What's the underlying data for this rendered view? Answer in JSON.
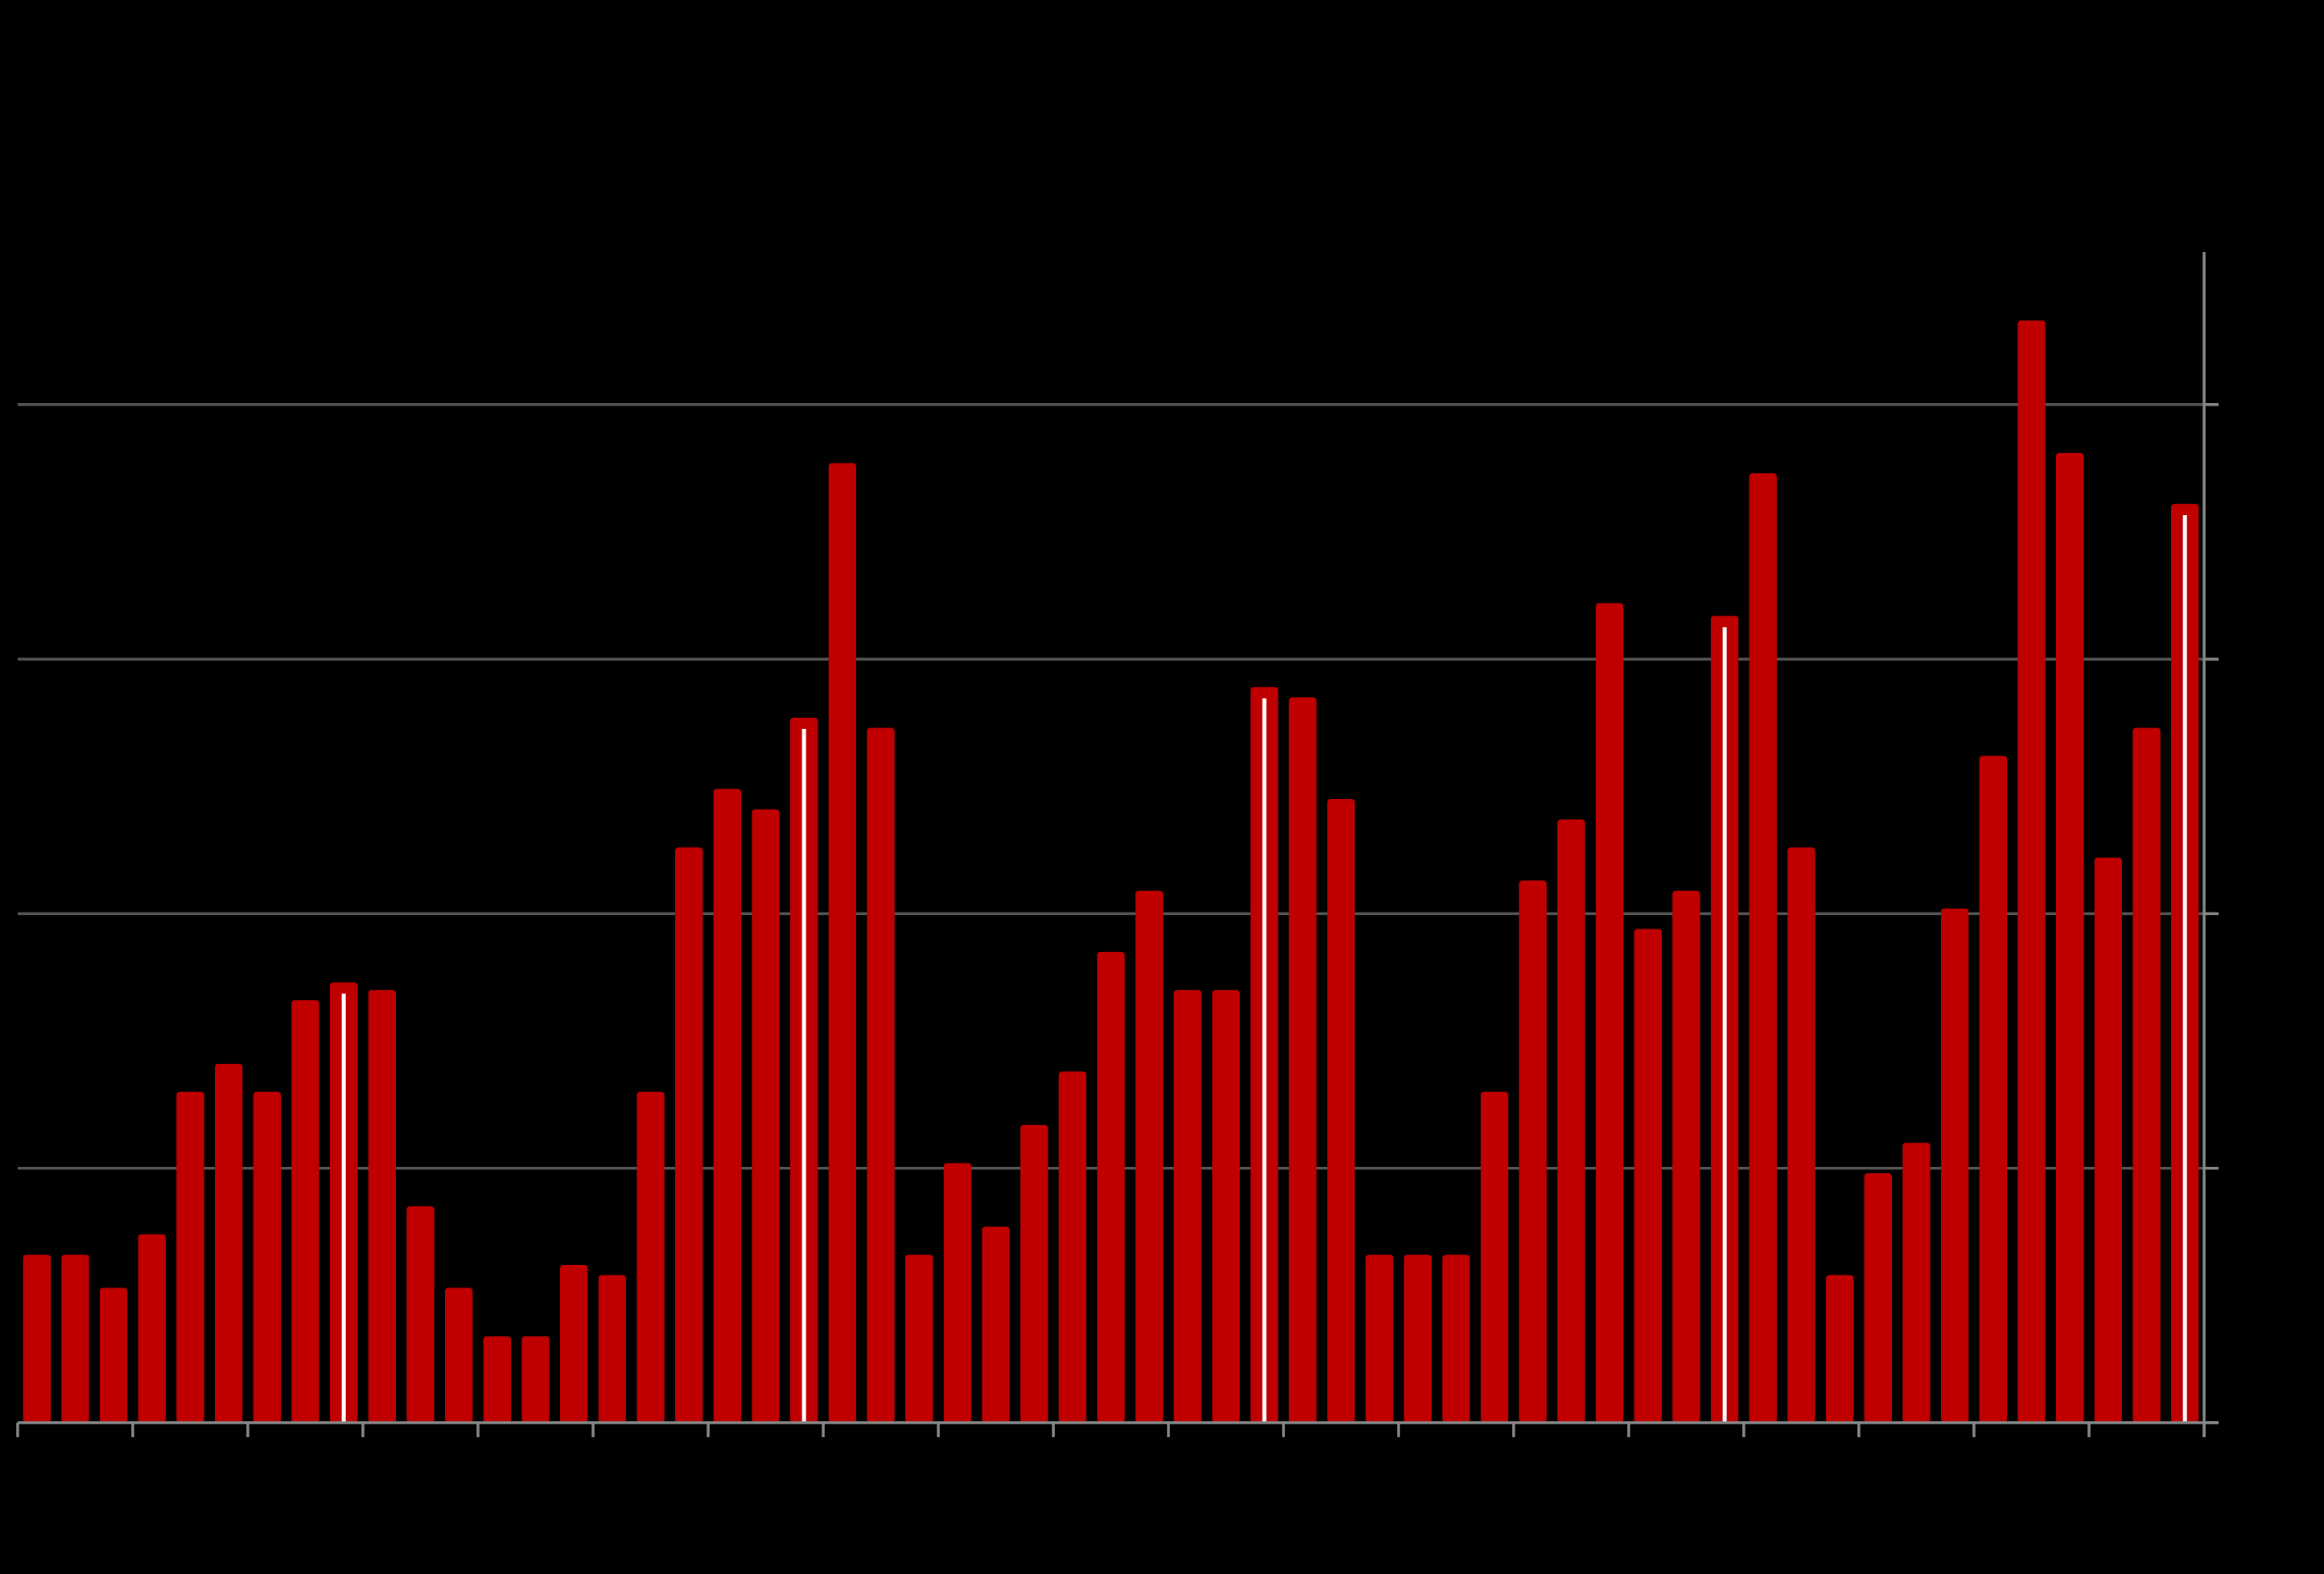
{
  "chart_data": {
    "type": "bar",
    "categories": [
      null,
      null,
      null,
      null,
      null,
      null,
      null,
      null,
      null,
      null,
      null,
      null,
      null,
      null,
      null,
      null,
      null,
      null,
      null,
      null,
      null,
      null,
      null,
      null,
      null,
      null,
      null,
      null,
      null,
      null,
      null,
      null,
      null,
      null,
      null,
      null,
      null,
      null,
      null,
      null,
      null,
      null,
      null,
      null,
      null,
      null,
      null,
      null,
      null,
      null,
      null,
      null,
      null,
      null,
      null,
      null,
      null
    ],
    "values": [
      0.66,
      0.66,
      0.53,
      0.74,
      1.3,
      1.41,
      1.3,
      1.66,
      1.73,
      1.7,
      0.85,
      0.53,
      0.34,
      0.34,
      0.62,
      0.58,
      1.3,
      2.26,
      2.49,
      2.41,
      2.77,
      3.77,
      2.73,
      0.66,
      1.02,
      0.77,
      1.17,
      1.38,
      1.85,
      2.09,
      1.7,
      1.7,
      2.89,
      2.85,
      2.45,
      0.66,
      0.66,
      0.66,
      1.3,
      2.13,
      2.37,
      3.22,
      1.94,
      2.09,
      3.17,
      3.73,
      2.26,
      0.58,
      0.98,
      1.1,
      2.02,
      2.62,
      4.33,
      3.81,
      2.22,
      2.73,
      3.61
    ],
    "color": "#c00000",
    "highlight": [
      8,
      20,
      32,
      44,
      56
    ],
    "highlight_color": "#ffffff",
    "ylim": [
      0,
      4.6
    ],
    "yticks": [
      0,
      1,
      2,
      3,
      4
    ],
    "grid": true,
    "y_axis_side": "right"
  }
}
